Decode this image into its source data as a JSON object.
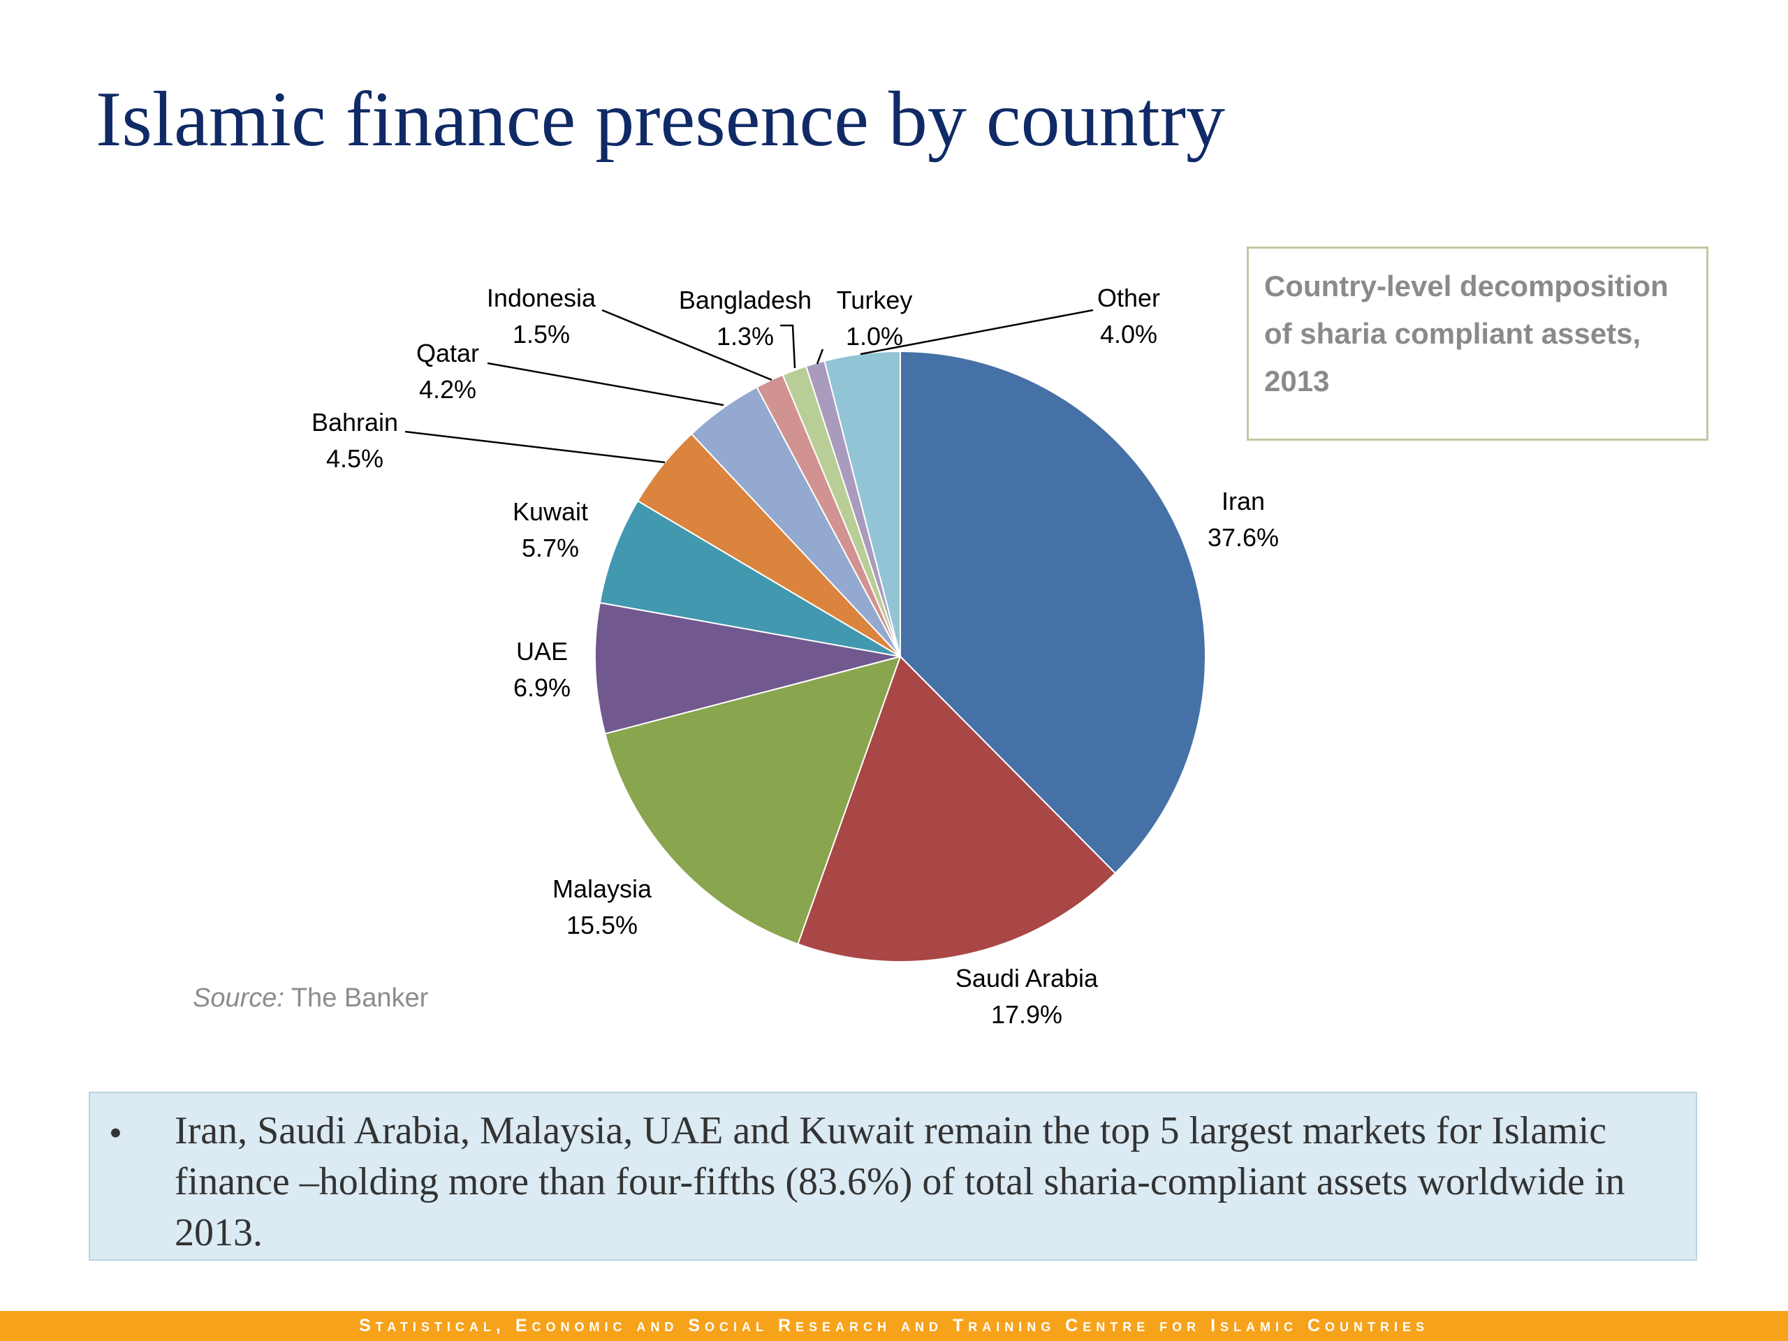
{
  "slide": {
    "title": "Islamic finance presence by country",
    "source_label": "Source:",
    "source_text": "The Banker"
  },
  "infobox": {
    "text": "Country-level decomposition of sharia compliant assets, 2013"
  },
  "note": {
    "bullet": "•",
    "text": "Iran, Saudi Arabia, Malaysia, UAE and Kuwait remain the top 5 largest markets for Islamic finance –holding more than four-fifths (83.6%) of total sharia-compliant assets worldwide in 2013."
  },
  "footer": {
    "text": "Statistical, Economic and Social Research and Training Centre for Islamic Countries"
  },
  "chart_data": {
    "type": "pie",
    "title": "",
    "start": "12 o'clock, clockwise",
    "slices": [
      {
        "label": "Iran",
        "value": 37.6,
        "display": "37.6%",
        "color": "#4671a6"
      },
      {
        "label": "Saudi Arabia",
        "value": 17.9,
        "display": "17.9%",
        "color": "#a84745"
      },
      {
        "label": "Malaysia",
        "value": 15.5,
        "display": "15.5%",
        "color": "#89a54e"
      },
      {
        "label": "UAE",
        "value": 6.9,
        "display": "6.9%",
        "color": "#71588f"
      },
      {
        "label": "Kuwait",
        "value": 5.7,
        "display": "5.7%",
        "color": "#4198af"
      },
      {
        "label": "Bahrain",
        "value": 4.5,
        "display": "4.5%",
        "color": "#db843d"
      },
      {
        "label": "Qatar",
        "value": 4.2,
        "display": "4.2%",
        "color": "#93a9cf"
      },
      {
        "label": "Indonesia",
        "value": 1.5,
        "display": "1.5%",
        "color": "#d19392"
      },
      {
        "label": "Bangladesh",
        "value": 1.3,
        "display": "1.3%",
        "color": "#b9cd96"
      },
      {
        "label": "Turkey",
        "value": 1.0,
        "display": "1.0%",
        "color": "#a99bbd"
      },
      {
        "label": "Other",
        "value": 4.0,
        "display": "4.0%",
        "color": "#92c4d6"
      }
    ]
  }
}
